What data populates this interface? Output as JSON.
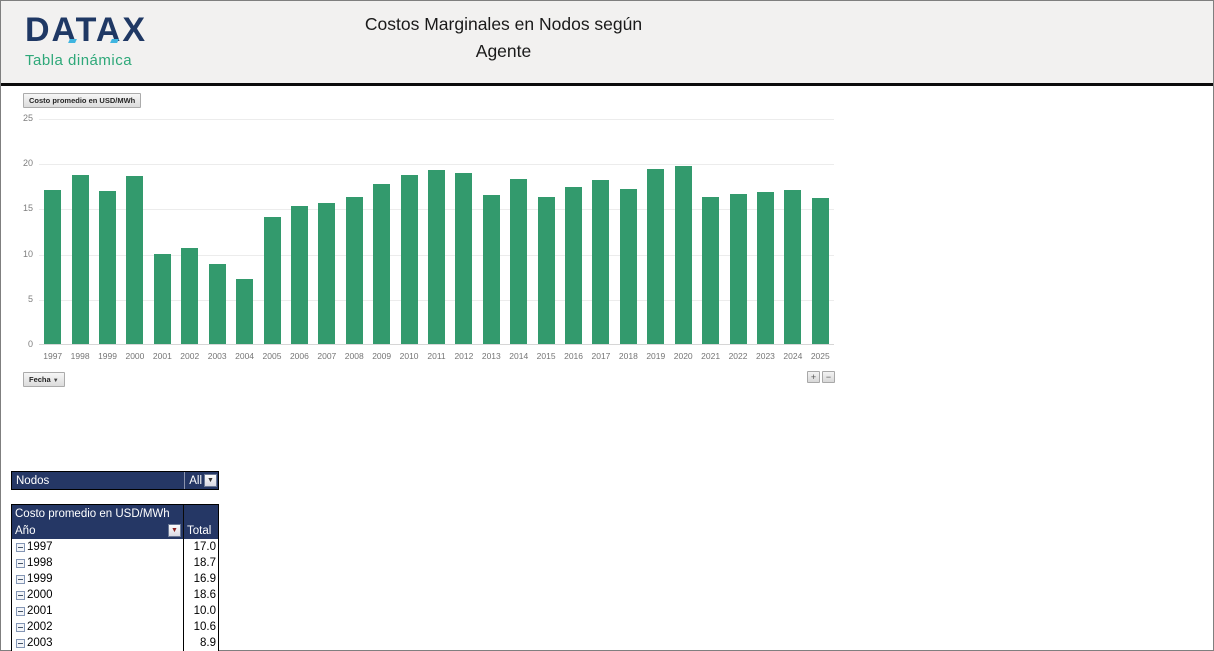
{
  "header": {
    "logo_text": "DATAX",
    "logo_subtitle": "Tabla dinámica",
    "title_line1": "Costos Marginales en Nodos según",
    "title_line2": "Agente"
  },
  "chart_buttons": {
    "value_field": "Costo promedio en USD/MWh",
    "axis_field": "Fecha",
    "axis_caret": "▼",
    "expand": "+",
    "collapse": "−"
  },
  "chart_data": {
    "type": "bar",
    "title": "Costo promedio en USD/MWh",
    "categories": [
      "1997",
      "1998",
      "1999",
      "2000",
      "2001",
      "2002",
      "2003",
      "2004",
      "2005",
      "2006",
      "2007",
      "2008",
      "2009",
      "2010",
      "2011",
      "2012",
      "2013",
      "2014",
      "2015",
      "2016",
      "2017",
      "2018",
      "2019",
      "2020",
      "2021",
      "2022",
      "2023",
      "2024",
      "2025"
    ],
    "values": [
      17.0,
      18.7,
      16.9,
      18.6,
      10.0,
      10.6,
      8.9,
      7.2,
      14.1,
      15.3,
      15.6,
      16.3,
      17.7,
      18.7,
      19.2,
      18.9,
      16.5,
      18.2,
      16.3,
      17.4,
      18.1,
      17.2,
      19.4,
      19.7,
      16.3,
      16.6,
      16.8,
      17.0,
      16.2
    ],
    "xlabel": "",
    "ylabel": "",
    "ylim": [
      0,
      25
    ],
    "yticks": [
      0,
      5,
      10,
      15,
      20,
      25
    ],
    "grid": true,
    "legend_position": "none",
    "bar_color": "#339a6d"
  },
  "filter": {
    "label": "Nodos",
    "value": "All",
    "dropdown_caret": "▼"
  },
  "pivot_table": {
    "title": "Costo promedio en USD/MWh",
    "row_header": "Año",
    "row_header_caret": "▼",
    "value_header": "Total",
    "rows": [
      {
        "year": "1997",
        "total": "17.0"
      },
      {
        "year": "1998",
        "total": "18.7"
      },
      {
        "year": "1999",
        "total": "16.9"
      },
      {
        "year": "2000",
        "total": "18.6"
      },
      {
        "year": "2001",
        "total": "10.0"
      },
      {
        "year": "2002",
        "total": "10.6"
      },
      {
        "year": "2003",
        "total": "8.9"
      }
    ]
  },
  "colors": {
    "bar_green": "#339a6d",
    "navy": "#253765",
    "logo_navy": "#1f3864",
    "logo_green": "#2ea879",
    "header_bg": "#f2f1f0"
  }
}
